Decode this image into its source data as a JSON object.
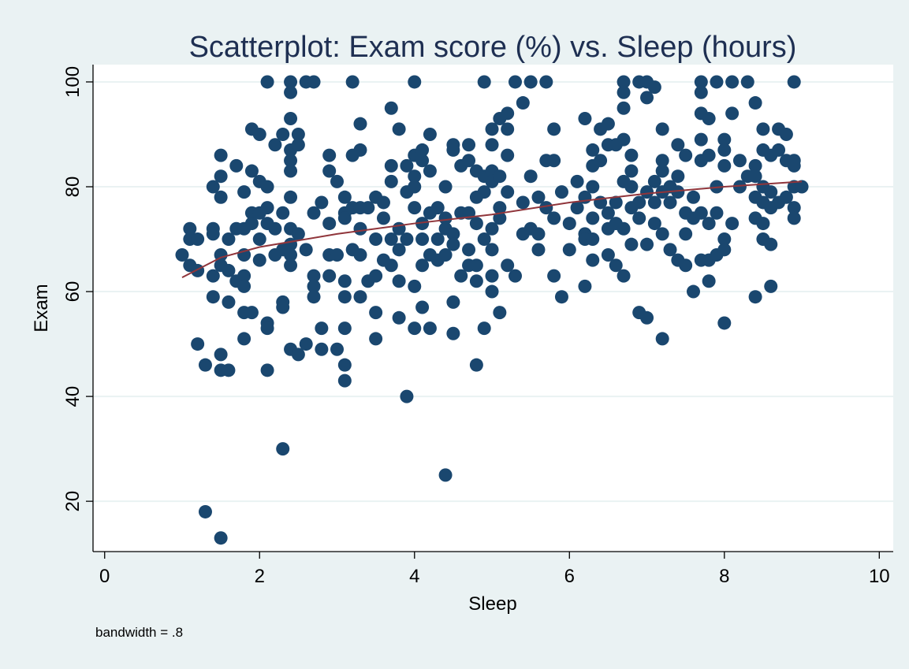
{
  "chart_data": {
    "type": "scatter",
    "title": "Scatterplot: Exam score (%) vs. Sleep (hours)",
    "x_label": "Sleep",
    "y_label": "Exam",
    "note": "bandwidth = .8",
    "xlim": [
      -0.15,
      10.18
    ],
    "ylim": [
      10.4,
      103.3
    ],
    "xticks": [
      0,
      2,
      4,
      6,
      8,
      10
    ],
    "yticks": [
      20,
      40,
      60,
      80,
      100
    ],
    "grid": true,
    "series": [
      {
        "type": "scatter",
        "color": "#1a476f",
        "x": [
          1.0,
          1.1,
          1.1,
          1.1,
          1.2,
          1.2,
          1.2,
          1.3,
          1.3,
          1.4,
          1.4,
          1.4,
          1.4,
          1.4,
          1.5,
          1.5,
          1.5,
          1.5,
          1.5,
          1.5,
          1.5,
          1.5,
          1.6,
          1.6,
          1.6,
          1.6,
          1.7,
          1.7,
          1.7,
          1.8,
          1.8,
          1.8,
          1.8,
          1.8,
          1.8,
          1.8,
          1.9,
          1.9,
          1.9,
          1.9,
          1.9,
          2.0,
          2.0,
          2.0,
          2.0,
          2.0,
          2.1,
          2.1,
          2.1,
          2.1,
          2.1,
          2.1,
          2.1,
          2.2,
          2.2,
          2.2,
          2.3,
          2.3,
          2.3,
          2.3,
          2.3,
          2.3,
          2.4,
          2.4,
          2.4,
          2.4,
          2.4,
          2.4,
          2.4,
          2.4,
          2.4,
          2.4,
          2.4,
          2.4,
          2.5,
          2.5,
          2.5,
          2.5,
          2.6,
          2.6,
          2.6,
          2.7,
          2.7,
          2.7,
          2.7,
          2.7,
          2.8,
          2.8,
          2.8,
          2.9,
          2.9,
          2.9,
          2.9,
          2.9,
          3.0,
          3.0,
          3.0,
          3.1,
          3.1,
          3.1,
          3.1,
          3.1,
          3.1,
          3.1,
          3.1,
          3.2,
          3.2,
          3.2,
          3.2,
          3.3,
          3.3,
          3.3,
          3.3,
          3.3,
          3.3,
          3.4,
          3.4,
          3.5,
          3.5,
          3.5,
          3.5,
          3.5,
          3.6,
          3.6,
          3.6,
          3.7,
          3.7,
          3.7,
          3.7,
          3.7,
          3.8,
          3.8,
          3.8,
          3.8,
          3.8,
          3.9,
          3.9,
          3.9,
          3.9,
          4.0,
          4.0,
          4.0,
          4.0,
          4.0,
          4.0,
          4.0,
          4.1,
          4.1,
          4.1,
          4.1,
          4.1,
          4.1,
          4.2,
          4.2,
          4.2,
          4.2,
          4.2,
          4.3,
          4.3,
          4.3,
          4.4,
          4.4,
          4.4,
          4.4,
          4.4,
          4.5,
          4.5,
          4.5,
          4.5,
          4.5,
          4.5,
          4.6,
          4.6,
          4.6,
          4.7,
          4.7,
          4.7,
          4.7,
          4.7,
          4.8,
          4.8,
          4.8,
          4.8,
          4.8,
          4.8,
          4.9,
          4.9,
          4.9,
          4.9,
          4.9,
          5.0,
          5.0,
          5.0,
          5.0,
          5.0,
          5.0,
          5.0,
          5.0,
          5.1,
          5.1,
          5.1,
          5.1,
          5.1,
          5.2,
          5.2,
          5.2,
          5.2,
          5.2,
          5.3,
          5.3,
          5.4,
          5.4,
          5.4,
          5.5,
          5.5,
          5.5,
          5.6,
          5.6,
          5.6,
          5.7,
          5.7,
          5.7,
          5.8,
          5.8,
          5.8,
          5.8,
          5.9,
          5.9,
          6.0,
          6.0,
          6.1,
          6.1,
          6.2,
          6.2,
          6.2,
          6.2,
          6.2,
          6.3,
          6.3,
          6.3,
          6.3,
          6.3,
          6.3,
          6.4,
          6.4,
          6.4,
          6.5,
          6.5,
          6.5,
          6.5,
          6.5,
          6.6,
          6.6,
          6.6,
          6.6,
          6.7,
          6.7,
          6.7,
          6.7,
          6.7,
          6.7,
          6.7,
          6.8,
          6.8,
          6.8,
          6.8,
          6.8,
          6.9,
          6.9,
          6.9,
          6.9,
          7.0,
          7.0,
          7.0,
          7.0,
          7.0,
          7.1,
          7.1,
          7.1,
          7.1,
          7.2,
          7.2,
          7.2,
          7.2,
          7.2,
          7.2,
          7.3,
          7.3,
          7.3,
          7.4,
          7.4,
          7.4,
          7.4,
          7.5,
          7.5,
          7.5,
          7.5,
          7.6,
          7.6,
          7.6,
          7.7,
          7.7,
          7.7,
          7.7,
          7.7,
          7.7,
          7.7,
          7.8,
          7.8,
          7.8,
          7.8,
          7.8,
          7.9,
          7.9,
          7.9,
          7.9,
          8.0,
          8.0,
          8.0,
          8.0,
          8.0,
          8.0,
          8.1,
          8.1,
          8.1,
          8.2,
          8.2,
          8.3,
          8.3,
          8.4,
          8.4,
          8.4,
          8.4,
          8.4,
          8.4,
          8.5,
          8.5,
          8.5,
          8.5,
          8.5,
          8.5,
          8.6,
          8.6,
          8.6,
          8.6,
          8.6,
          8.7,
          8.7,
          8.7,
          8.8,
          8.8,
          8.8,
          8.9,
          8.9,
          8.9,
          8.9,
          8.9,
          8.9,
          9.0
        ],
        "values": [
          67,
          72,
          70,
          65,
          70,
          64,
          50,
          46,
          18,
          80,
          72,
          71,
          63,
          59,
          86,
          82,
          78,
          67,
          65,
          48,
          45,
          13,
          70,
          64,
          58,
          45,
          84,
          72,
          62,
          79,
          72,
          67,
          63,
          61,
          56,
          51,
          91,
          83,
          75,
          73,
          56,
          90,
          81,
          75,
          70,
          66,
          100,
          80,
          76,
          73,
          54,
          53,
          45,
          88,
          72,
          67,
          90,
          75,
          68,
          58,
          57,
          30,
          100,
          98,
          93,
          87,
          85,
          83,
          78,
          72,
          69,
          67,
          65,
          49,
          90,
          88,
          71,
          48,
          100,
          68,
          50,
          100,
          75,
          63,
          61,
          59,
          77,
          53,
          49,
          86,
          83,
          73,
          67,
          63,
          81,
          67,
          49,
          78,
          75,
          74,
          62,
          59,
          53,
          46,
          43,
          100,
          86,
          76,
          68,
          92,
          87,
          76,
          72,
          67,
          59,
          76,
          62,
          78,
          70,
          63,
          56,
          51,
          77,
          74,
          66,
          95,
          84,
          81,
          70,
          65,
          91,
          72,
          68,
          62,
          55,
          84,
          79,
          70,
          40,
          100,
          86,
          82,
          80,
          76,
          61,
          53,
          87,
          85,
          73,
          70,
          65,
          57,
          90,
          83,
          75,
          67,
          53,
          76,
          70,
          66,
          80,
          74,
          72,
          67,
          25,
          88,
          87,
          71,
          69,
          58,
          52,
          84,
          75,
          63,
          88,
          85,
          75,
          68,
          65,
          83,
          78,
          73,
          65,
          62,
          46,
          100,
          82,
          79,
          70,
          53,
          91,
          88,
          83,
          81,
          72,
          68,
          63,
          60,
          93,
          82,
          76,
          74,
          56,
          94,
          91,
          86,
          79,
          65,
          100,
          63,
          96,
          77,
          71,
          100,
          82,
          72,
          78,
          71,
          68,
          100,
          85,
          76,
          91,
          85,
          74,
          63,
          79,
          59,
          73,
          68,
          81,
          76,
          93,
          78,
          71,
          70,
          61,
          87,
          84,
          80,
          74,
          70,
          66,
          91,
          85,
          77,
          92,
          88,
          75,
          72,
          67,
          88,
          77,
          73,
          65,
          100,
          98,
          95,
          89,
          81,
          72,
          63,
          86,
          83,
          80,
          76,
          69,
          100,
          77,
          74,
          56,
          100,
          97,
          79,
          69,
          55,
          99,
          81,
          77,
          73,
          91,
          85,
          83,
          79,
          71,
          51,
          80,
          77,
          68,
          88,
          82,
          79,
          66,
          86,
          75,
          71,
          65,
          78,
          74,
          60,
          100,
          98,
          94,
          89,
          85,
          75,
          66,
          93,
          86,
          73,
          66,
          62,
          100,
          80,
          75,
          67,
          89,
          87,
          84,
          70,
          68,
          54,
          100,
          94,
          73,
          85,
          80,
          100,
          82,
          96,
          84,
          82,
          78,
          74,
          59,
          91,
          87,
          80,
          77,
          73,
          70,
          86,
          79,
          76,
          69,
          61,
          91,
          87,
          77,
          90,
          85,
          78,
          100,
          85,
          84,
          80,
          76,
          74,
          80
        ]
      },
      {
        "type": "line",
        "color": "#90353b",
        "x": [
          1,
          1.5,
          2,
          3,
          4,
          5,
          6,
          7,
          8,
          9
        ],
        "values": [
          62.7,
          66.5,
          68.5,
          71,
          73,
          74.7,
          77,
          78.7,
          80,
          81
        ]
      }
    ]
  }
}
